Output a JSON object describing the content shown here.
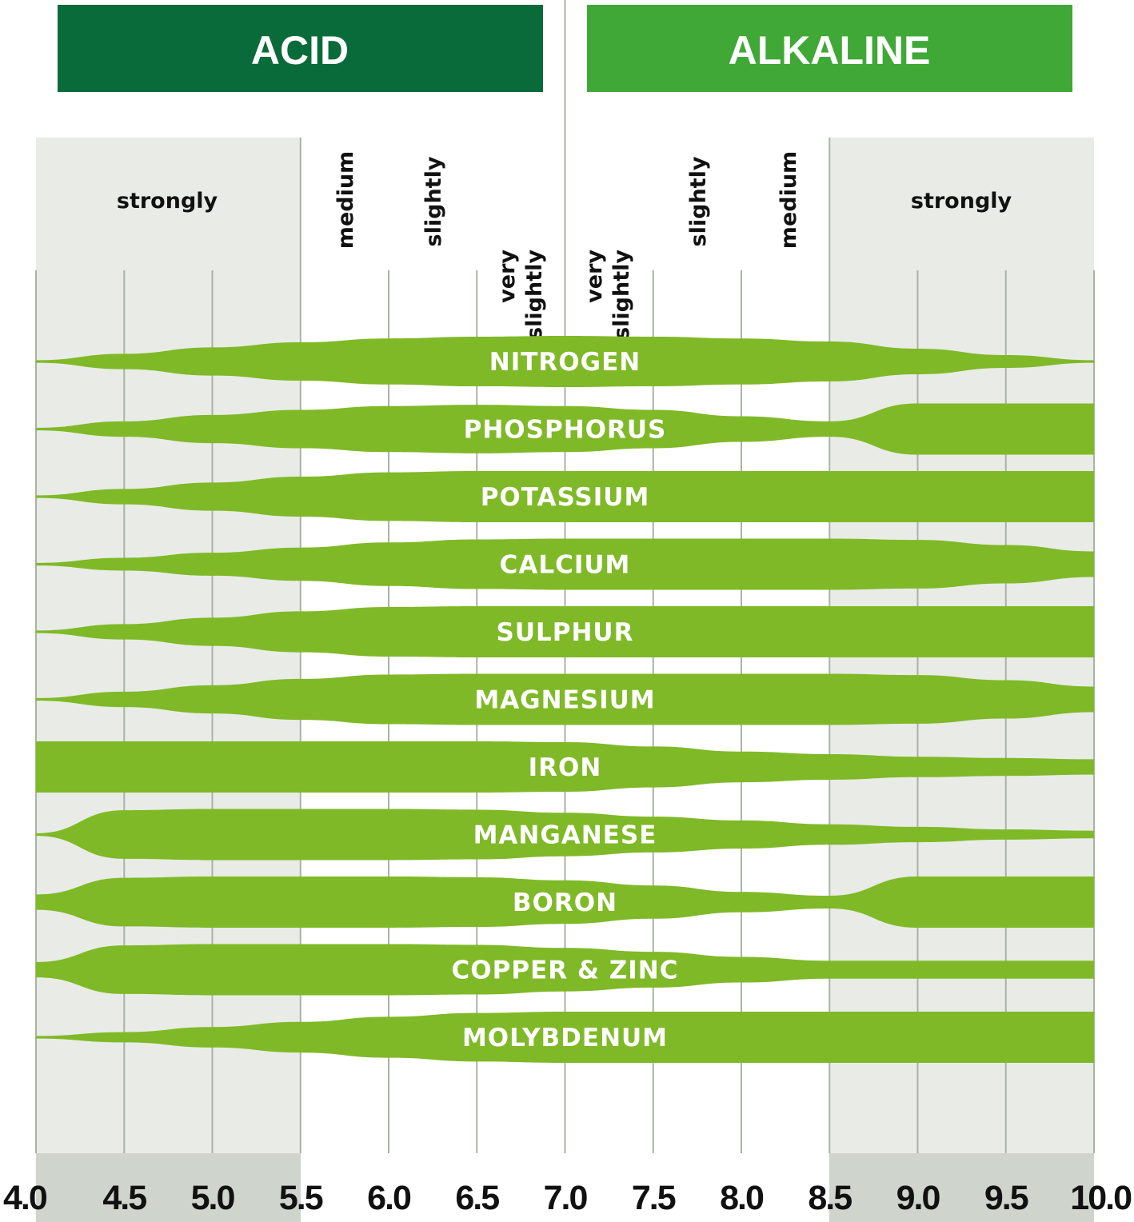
{
  "colors": {
    "acid": "#0a6b3a",
    "alkaline": "#40a836",
    "band": "#7fb927",
    "shade": "#e8ebe6",
    "shade_bottom": "#cfd4cc",
    "grid": "#a9b3a6"
  },
  "headers": {
    "acid": "ACID",
    "alkaline": "ALKALINE"
  },
  "zones": {
    "acid": {
      "strongly": "strongly",
      "medium": "medium",
      "slightly": "slightly",
      "very_slightly": [
        "very",
        "slightly"
      ]
    },
    "alkaline": {
      "very_slightly": [
        "very",
        "slightly"
      ],
      "slightly": "slightly",
      "medium": "medium",
      "strongly": "strongly"
    }
  },
  "chart_data": {
    "type": "area",
    "x_ticks": [
      "4.0",
      "4.5",
      "5.0",
      "5.5",
      "6.0",
      "6.5",
      "7.0",
      "7.5",
      "8.0",
      "8.5",
      "9.0",
      "9.5",
      "10.0"
    ],
    "xlim": [
      4.0,
      10.0
    ],
    "shaded_ranges": [
      [
        4.0,
        5.5
      ],
      [
        8.5,
        10.0
      ]
    ],
    "series": [
      {
        "name": "NITROGEN",
        "widths": [
          0.05,
          0.3,
          0.55,
          0.75,
          0.9,
          0.97,
          1.0,
          0.97,
          0.9,
          0.78,
          0.5,
          0.25,
          0.05
        ]
      },
      {
        "name": "PHOSPHORUS",
        "widths": [
          0.05,
          0.3,
          0.55,
          0.75,
          0.9,
          0.95,
          0.9,
          0.75,
          0.5,
          0.3,
          1.0,
          1.0,
          1.0
        ]
      },
      {
        "name": "POTASSIUM",
        "widths": [
          0.05,
          0.3,
          0.55,
          0.78,
          0.95,
          1.0,
          1.0,
          1.0,
          1.0,
          1.0,
          1.0,
          1.0,
          1.0
        ]
      },
      {
        "name": "CALCIUM",
        "widths": [
          0.05,
          0.25,
          0.45,
          0.65,
          0.85,
          0.97,
          1.0,
          1.0,
          1.0,
          1.0,
          0.95,
          0.75,
          0.5
        ]
      },
      {
        "name": "SULPHUR",
        "widths": [
          0.05,
          0.3,
          0.55,
          0.8,
          0.97,
          1.0,
          1.0,
          1.0,
          1.0,
          1.0,
          1.0,
          1.0,
          1.0
        ]
      },
      {
        "name": "MAGNESIUM",
        "widths": [
          0.05,
          0.3,
          0.55,
          0.8,
          0.97,
          1.0,
          1.0,
          1.0,
          1.0,
          1.0,
          0.95,
          0.75,
          0.5
        ]
      },
      {
        "name": "IRON",
        "widths": [
          1.0,
          1.0,
          1.0,
          1.0,
          1.0,
          1.0,
          0.97,
          0.8,
          0.6,
          0.5,
          0.4,
          0.35,
          0.3
        ]
      },
      {
        "name": "MANGANESE",
        "widths": [
          0.05,
          0.95,
          1.0,
          1.0,
          1.0,
          0.97,
          0.85,
          0.7,
          0.55,
          0.4,
          0.3,
          0.2,
          0.15
        ]
      },
      {
        "name": "BORON",
        "widths": [
          0.3,
          0.95,
          1.0,
          1.0,
          1.0,
          0.97,
          0.85,
          0.65,
          0.4,
          0.25,
          1.0,
          1.0,
          1.0
        ]
      },
      {
        "name": "COPPER & ZINC",
        "widths": [
          0.3,
          0.95,
          1.0,
          1.0,
          1.0,
          0.97,
          0.85,
          0.7,
          0.5,
          0.35,
          0.35,
          0.35,
          0.35
        ]
      },
      {
        "name": "MOLYBDENUM",
        "widths": [
          0.05,
          0.2,
          0.4,
          0.6,
          0.8,
          0.95,
          1.0,
          1.0,
          1.0,
          1.0,
          1.0,
          1.0,
          1.0
        ]
      }
    ]
  }
}
